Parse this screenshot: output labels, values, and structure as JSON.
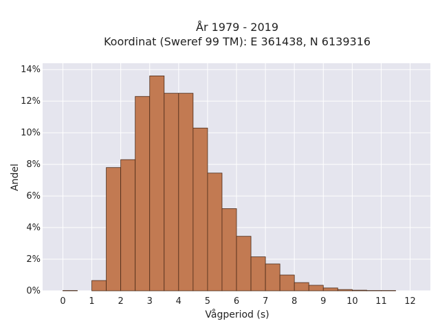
{
  "chart_data": {
    "type": "bar",
    "title_lines": [
      "År 1979 - 2019",
      "Koordinat (Sweref 99 TM): E 361438, N 6139316"
    ],
    "xlabel": "Vågperiod (s)",
    "ylabel": "Andel",
    "xlim": [
      -0.7,
      12.7
    ],
    "ylim": [
      0,
      14.4
    ],
    "x_ticks": [
      0,
      1,
      2,
      3,
      4,
      5,
      6,
      7,
      8,
      9,
      10,
      11,
      12
    ],
    "y_ticks": [
      0,
      2,
      4,
      6,
      8,
      10,
      12,
      14
    ],
    "y_tick_labels": [
      "0%",
      "2%",
      "4%",
      "6%",
      "8%",
      "10%",
      "12%",
      "14%"
    ],
    "bin_width": 0.5,
    "bins": [
      {
        "x0": 0.0,
        "x1": 0.5,
        "value": 0.02
      },
      {
        "x0": 0.5,
        "x1": 1.0,
        "value": 0.0
      },
      {
        "x0": 1.0,
        "x1": 1.5,
        "value": 0.65
      },
      {
        "x0": 1.5,
        "x1": 2.0,
        "value": 7.8
      },
      {
        "x0": 2.0,
        "x1": 2.5,
        "value": 8.3
      },
      {
        "x0": 2.5,
        "x1": 3.0,
        "value": 12.3
      },
      {
        "x0": 3.0,
        "x1": 3.5,
        "value": 13.6
      },
      {
        "x0": 3.5,
        "x1": 4.0,
        "value": 12.5
      },
      {
        "x0": 4.0,
        "x1": 4.5,
        "value": 12.5
      },
      {
        "x0": 4.5,
        "x1": 5.0,
        "value": 10.3
      },
      {
        "x0": 5.0,
        "x1": 5.5,
        "value": 7.45
      },
      {
        "x0": 5.5,
        "x1": 6.0,
        "value": 5.2
      },
      {
        "x0": 6.0,
        "x1": 6.5,
        "value": 3.45
      },
      {
        "x0": 6.5,
        "x1": 7.0,
        "value": 2.15
      },
      {
        "x0": 7.0,
        "x1": 7.5,
        "value": 1.7
      },
      {
        "x0": 7.5,
        "x1": 8.0,
        "value": 1.0
      },
      {
        "x0": 8.0,
        "x1": 8.5,
        "value": 0.52
      },
      {
        "x0": 8.5,
        "x1": 9.0,
        "value": 0.35
      },
      {
        "x0": 9.0,
        "x1": 9.5,
        "value": 0.18
      },
      {
        "x0": 9.5,
        "x1": 10.0,
        "value": 0.08
      },
      {
        "x0": 10.0,
        "x1": 10.5,
        "value": 0.04
      },
      {
        "x0": 10.5,
        "x1": 11.0,
        "value": 0.02
      },
      {
        "x0": 11.0,
        "x1": 11.5,
        "value": 0.02
      }
    ],
    "grid": true,
    "colors": {
      "bar_fill": "#c27a52",
      "bar_stroke": "#4a2a18",
      "plot_background": "#e5e5ee",
      "grid": "#ffffff"
    }
  }
}
